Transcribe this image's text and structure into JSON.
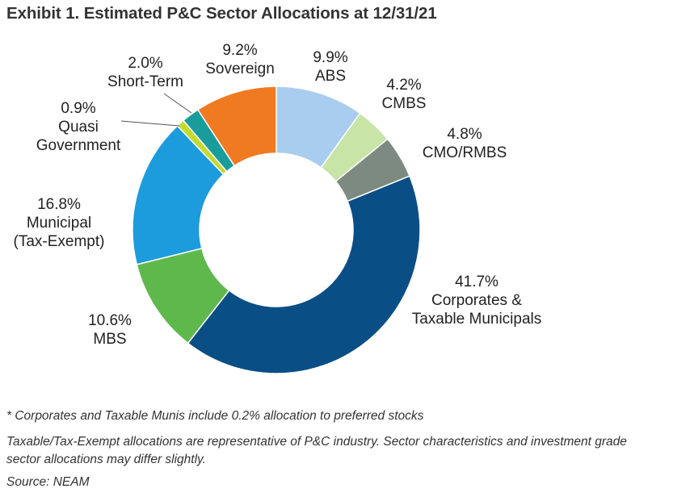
{
  "title": "Exhibit 1. Estimated P&C Sector Allocations at 12/31/21",
  "chart_data": {
    "type": "pie",
    "donut": true,
    "legend": "none",
    "slices": [
      {
        "pct": "9.9%",
        "value": 9.9,
        "label": [
          "ABS"
        ],
        "color": "#A9CDEE"
      },
      {
        "pct": "4.2%",
        "value": 4.2,
        "label": [
          "CMBS"
        ],
        "color": "#C8E5A7"
      },
      {
        "pct": "4.8%",
        "value": 4.8,
        "label": [
          "CMO/RMBS"
        ],
        "color": "#7D8A80"
      },
      {
        "pct": "41.7%",
        "value": 41.7,
        "label": [
          "Corporates &",
          "Taxable Municipals"
        ],
        "color": "#0A4E86"
      },
      {
        "pct": "10.6%",
        "value": 10.6,
        "label": [
          "MBS"
        ],
        "color": "#5FB84C"
      },
      {
        "pct": "16.8%",
        "value": 16.8,
        "label": [
          "Municipal",
          "(Tax-Exempt)"
        ],
        "color": "#1C9BDD"
      },
      {
        "pct": "0.9%",
        "value": 0.9,
        "label": [
          "Quasi",
          "Government"
        ],
        "color": "#C2DB2E"
      },
      {
        "pct": "2.0%",
        "value": 2.0,
        "label": [
          "Short-Term"
        ],
        "color": "#1A9C9C"
      },
      {
        "pct": "9.2%",
        "value": 9.2,
        "label": [
          "Sovereign"
        ],
        "color": "#F07A22"
      }
    ]
  },
  "notes": {
    "footnote": "* Corporates and Taxable Munis include 0.2% allocation to preferred stocks",
    "disclaimer_line1": "Taxable/Tax-Exempt allocations are representative of P&C industry. Sector characteristics and investment grade",
    "disclaimer_line2": "sector allocations may differ slightly.",
    "source": "Source: NEAM"
  }
}
